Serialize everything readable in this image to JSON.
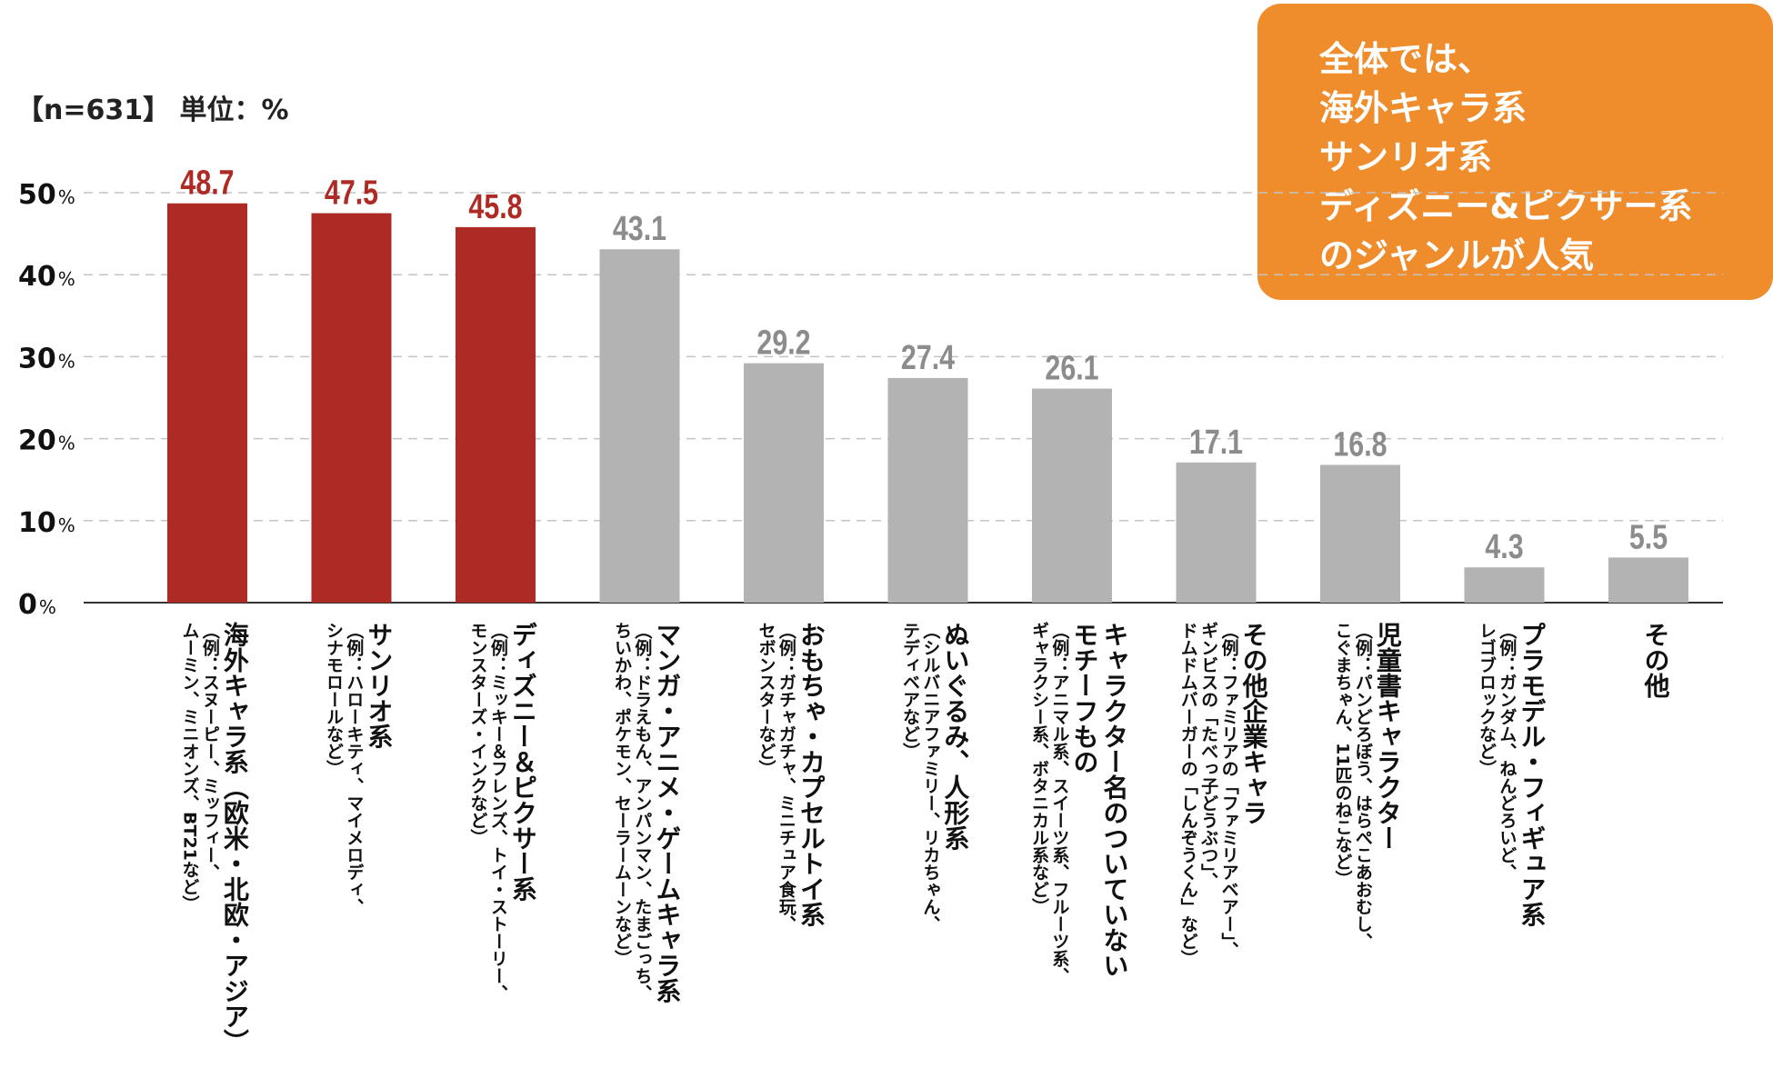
{
  "header": {
    "sample_unit": "【n=631】 単位：%"
  },
  "callout": {
    "lines": [
      "全体では、",
      "海外キャラ系",
      "サンリオ系",
      "ディズニー&ピクサー系",
      "のジャンルが人気"
    ]
  },
  "colors": {
    "highlight": "#ae2a24",
    "normal": "#b3b3b3",
    "label_highlight": "#ae2a24",
    "label_normal": "#8c8c8c",
    "callout_bg": "#ef8c2b"
  },
  "chart_data": {
    "type": "bar",
    "title": "",
    "xlabel": "",
    "ylabel": "",
    "ylim": [
      0,
      50
    ],
    "yticks": [
      0,
      10,
      20,
      30,
      40,
      50
    ],
    "ytick_labels": [
      "0",
      "10",
      "20",
      "30",
      "40",
      "50"
    ],
    "ytick_suffix": "%",
    "grid": true,
    "categories": [
      "海外キャラ系（欧米・北欧・アジア）",
      "サンリオ系",
      "ディズニー＆ピクサー系",
      "マンガ・アニメ・ゲームキャラ系",
      "おもちゃ・カプセルトイ系",
      "ぬいぐるみ、人形系",
      "キャラクター名のついていないモチーフもの",
      "その他企業キャラ",
      "児童書キャラクター",
      "プラモデル・フィギュア系",
      "その他"
    ],
    "values": [
      48.7,
      47.5,
      45.8,
      43.1,
      29.2,
      27.4,
      26.1,
      17.1,
      16.8,
      4.3,
      5.5
    ],
    "value_labels": [
      "48.7",
      "47.5",
      "45.8",
      "43.1",
      "29.2",
      "27.4",
      "26.1",
      "17.1",
      "16.8",
      "4.3",
      "5.5"
    ],
    "highlighted": [
      true,
      true,
      true,
      false,
      false,
      false,
      false,
      false,
      false,
      false,
      false
    ],
    "labels": [
      {
        "name": "海外キャラ系（欧米・北欧・アジア）",
        "example": "（例：スヌーピー、ミッフィー、\nムーミン、ミニオンズ、BT21など）"
      },
      {
        "name": "サンリオ系",
        "example": "（例：ハローキティ、マイメロディ、\nシナモロールなど）"
      },
      {
        "name": "ディズニー＆ピクサー系",
        "example": "（例：ミッキー＆フレンズ、トイ・ストーリー、\nモンスターズ・インクなど）"
      },
      {
        "name": "マンガ・アニメ・ゲームキャラ系",
        "example": "（例：ドラえもん、アンパンマン、たまごっち、\nちいかわ、ポケモン、セーラームーンなど）"
      },
      {
        "name": "おもちゃ・カプセルトイ系",
        "example": "（例：ガチャガチャ、ミニチュア食玩、\nセボンスターなど）"
      },
      {
        "name": "ぬいぐるみ、人形系",
        "example": "（シルバニアファミリー、リカちゃん、\nテディベアなど）"
      },
      {
        "name": "キャラクター名のついていない\nモチーフもの",
        "example": "（例：アニマル系、スイーツ系、フルーツ系、\nギャラクシー系、ボタニカル系など）"
      },
      {
        "name": "その他企業キャラ",
        "example": "（例：ファミリアの「ファミリアベアー」、\nギンビスの「たべっ子どうぶつ」、\nドムドムバーガーの「しんぞうくん」など）"
      },
      {
        "name": "児童書キャラクター",
        "example": "（例：パンどろぼう、はらぺこあおむし、\nこぐまちゃん、11匹のねこなど）"
      },
      {
        "name": "プラモデル・フィギュア系",
        "example": "（例：ガンダム、ねんどろいど、\nレゴブロックなど）"
      },
      {
        "name": "その他",
        "example": ""
      }
    ]
  }
}
